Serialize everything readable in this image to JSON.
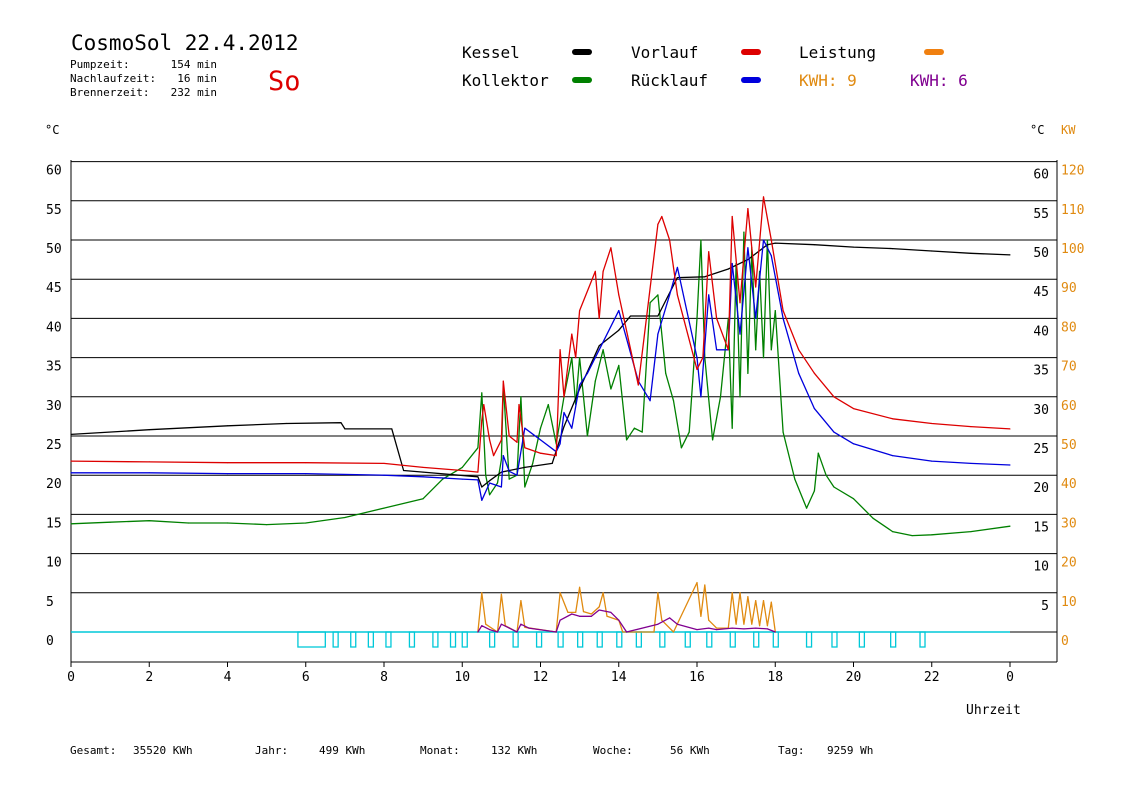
{
  "header": {
    "title": "CosmoSol 22.4.2012",
    "day": "So",
    "stats": [
      {
        "label": "Pumpzeit:",
        "value": "154 min"
      },
      {
        "label": "Nachlaufzeit:",
        "value": "16 min"
      },
      {
        "label": "Brennerzeit:",
        "value": "232 min"
      }
    ]
  },
  "colors": {
    "kessel": "#000000",
    "vorlauf": "#dd0000",
    "leistung": "#f08010",
    "kollektor": "#008000",
    "ruecklauf": "#0000dd",
    "kwh1": "#e08a10",
    "kwh2": "#800090",
    "pump": "#00c8d8",
    "grid": "#000000",
    "axis_right": "#e08a10"
  },
  "legend": [
    {
      "key": "kessel",
      "label": "Kessel"
    },
    {
      "key": "vorlauf",
      "label": "Vorlauf"
    },
    {
      "key": "leistung",
      "label": "Leistung"
    },
    {
      "key": "kollektor",
      "label": "Kollektor"
    },
    {
      "key": "ruecklauf",
      "label": "Rücklauf"
    },
    {
      "key": "kwh1",
      "label": "KWH: 9"
    },
    {
      "key": "kwh2",
      "label": "KWH: 6"
    }
  ],
  "footer": [
    {
      "label": "Gesamt:",
      "value": "35520 KWh"
    },
    {
      "label": "Jahr:",
      "value": "499 KWh"
    },
    {
      "label": "Monat:",
      "value": "132 KWh"
    },
    {
      "label": "Woche:",
      "value": "56 KWh"
    },
    {
      "label": "Tag:",
      "value": "9259 Wh"
    }
  ],
  "chart_data": {
    "type": "line",
    "xlabel": "Uhrzeit",
    "ylabel_left": "°C",
    "ylabel_right_temp": "°C",
    "ylabel_right_power": "KW",
    "xlim": [
      0,
      24
    ],
    "ylim": [
      0,
      60
    ],
    "x_ticks": [
      "0",
      "2",
      "4",
      "6",
      "8",
      "10",
      "12",
      "14",
      "16",
      "18",
      "20",
      "22",
      "0"
    ],
    "y_ticks_left": [
      0,
      5,
      10,
      15,
      20,
      25,
      30,
      35,
      40,
      45,
      50,
      55,
      60
    ],
    "y_ticks_right_temp": [
      5,
      10,
      15,
      20,
      25,
      30,
      35,
      40,
      45,
      50,
      55,
      60
    ],
    "y_ticks_right_power": [
      0,
      10,
      20,
      30,
      40,
      50,
      60,
      70,
      80,
      90,
      100,
      110,
      120
    ],
    "series": [
      {
        "name": "Kessel",
        "key": "kessel",
        "x": [
          0,
          2,
          4,
          5.5,
          6.9,
          7.0,
          8.2,
          8.5,
          9.0,
          10.4,
          10.5,
          10.7,
          11.0,
          11.6,
          12.3,
          12.6,
          13.0,
          13.5,
          14.0,
          14.3,
          15.0,
          15.5,
          16.2,
          16.8,
          17.3,
          17.8,
          18.0,
          19,
          20,
          21,
          22,
          23,
          24
        ],
        "y": [
          25.2,
          25.8,
          26.3,
          26.6,
          26.7,
          25.9,
          25.9,
          20.6,
          20.4,
          19.8,
          18.5,
          19.3,
          20.4,
          21.0,
          21.5,
          26.2,
          31.0,
          36.5,
          38.5,
          40.3,
          40.3,
          45.2,
          45.3,
          46.3,
          47.5,
          49.4,
          49.6,
          49.4,
          49.1,
          48.9,
          48.6,
          48.3,
          48.1
        ]
      },
      {
        "name": "Vorlauf",
        "key": "vorlauf",
        "x": [
          0,
          2,
          4,
          6,
          8,
          9,
          10,
          10.4,
          10.5,
          10.55,
          10.7,
          10.8,
          11.0,
          11.05,
          11.2,
          11.4,
          11.45,
          11.6,
          12.0,
          12.4,
          12.5,
          12.6,
          12.8,
          12.9,
          13.0,
          13.4,
          13.5,
          13.6,
          13.8,
          14.0,
          14.5,
          15.0,
          15.1,
          15.3,
          15.5,
          16.0,
          16.15,
          16.3,
          16.5,
          16.8,
          16.9,
          17.1,
          17.3,
          17.5,
          17.7,
          17.9,
          18.2,
          18.6,
          19.0,
          19.5,
          20,
          21,
          22,
          23,
          24
        ],
        "y": [
          21.8,
          21.7,
          21.6,
          21.6,
          21.5,
          21.0,
          20.6,
          20.4,
          27.0,
          29.0,
          24.5,
          22.5,
          24.5,
          32.0,
          25.0,
          24.2,
          29.0,
          23.5,
          22.8,
          22.5,
          36.0,
          30.0,
          38.0,
          35.0,
          41.0,
          46.0,
          40.0,
          46.0,
          49.0,
          43.0,
          31.5,
          52.0,
          53.0,
          50.0,
          43.0,
          33.5,
          35.0,
          48.5,
          40.0,
          36.0,
          53.0,
          42.0,
          54.0,
          44.0,
          55.5,
          50.0,
          41.0,
          36.0,
          33.0,
          30.0,
          28.5,
          27.2,
          26.6,
          26.2,
          25.9
        ]
      },
      {
        "name": "Rücklauf",
        "key": "ruecklauf",
        "x": [
          0,
          2,
          4,
          6,
          8,
          9,
          10,
          10.4,
          10.5,
          10.7,
          11.0,
          11.05,
          11.2,
          11.4,
          11.6,
          12.0,
          12.4,
          12.5,
          12.6,
          12.8,
          13.0,
          13.2,
          13.4,
          13.5,
          14.0,
          14.5,
          14.8,
          15.0,
          15.3,
          15.5,
          16.0,
          16.1,
          16.3,
          16.5,
          16.8,
          16.9,
          17.1,
          17.3,
          17.5,
          17.7,
          17.9,
          18.2,
          18.6,
          19.0,
          19.5,
          20,
          21,
          22,
          23,
          24
        ],
        "y": [
          20.3,
          20.3,
          20.2,
          20.2,
          20.0,
          19.8,
          19.5,
          19.4,
          16.8,
          19.0,
          18.5,
          22.5,
          20.5,
          20.0,
          26.0,
          24.5,
          23.0,
          24.0,
          28.0,
          26.0,
          31.5,
          33.0,
          35.0,
          36.0,
          41.0,
          32.0,
          29.5,
          38.0,
          43.0,
          46.5,
          35.0,
          30.0,
          43.0,
          36.0,
          36.0,
          47.0,
          38.0,
          49.0,
          40.0,
          50.0,
          48.0,
          40.0,
          33.0,
          28.5,
          25.5,
          24.0,
          22.5,
          21.8,
          21.5,
          21.3
        ]
      },
      {
        "name": "Kollektor",
        "key": "kollektor",
        "x": [
          0,
          1,
          2,
          3,
          4,
          5,
          6,
          7,
          8,
          9,
          9.5,
          10,
          10.4,
          10.5,
          10.6,
          10.7,
          10.9,
          11.0,
          11.05,
          11.2,
          11.4,
          11.5,
          11.6,
          11.8,
          12.0,
          12.2,
          12.4,
          12.6,
          12.8,
          12.9,
          13.0,
          13.2,
          13.4,
          13.6,
          13.8,
          14.0,
          14.2,
          14.4,
          14.6,
          14.8,
          15.0,
          15.2,
          15.4,
          15.6,
          15.8,
          16.0,
          16.1,
          16.2,
          16.4,
          16.6,
          16.8,
          16.9,
          17.0,
          17.1,
          17.2,
          17.3,
          17.4,
          17.5,
          17.6,
          17.7,
          17.8,
          17.9,
          18.0,
          18.2,
          18.5,
          18.8,
          19.0,
          19.1,
          19.3,
          19.5,
          20.0,
          20.5,
          21.0,
          21.5,
          22,
          23,
          24
        ],
        "y": [
          13.8,
          14.0,
          14.2,
          13.9,
          13.9,
          13.7,
          13.9,
          14.6,
          15.8,
          17.0,
          19.5,
          21.0,
          23.5,
          30.5,
          20.0,
          17.5,
          19.0,
          22.0,
          31.5,
          19.5,
          20.0,
          30.0,
          18.5,
          21.5,
          26.0,
          29.0,
          24.0,
          30.0,
          35.0,
          29.0,
          35.0,
          25.0,
          32.0,
          36.0,
          31.0,
          34.0,
          24.5,
          26.0,
          25.5,
          42.0,
          43.0,
          33.0,
          29.5,
          23.5,
          25.5,
          40.0,
          50.0,
          35.0,
          24.5,
          30.0,
          40.0,
          26.0,
          47.0,
          30.0,
          51.0,
          33.0,
          49.0,
          36.0,
          46.0,
          35.0,
          50.0,
          36.0,
          41.0,
          25.5,
          19.5,
          15.8,
          18.0,
          22.8,
          20.0,
          18.5,
          17.0,
          14.5,
          12.8,
          12.3,
          12.4,
          12.8,
          13.5
        ]
      },
      {
        "name": "KWH: 9",
        "key": "kwh1",
        "x": [
          10.4,
          10.5,
          10.6,
          10.9,
          11.0,
          11.1,
          11.4,
          11.5,
          11.6,
          12.4,
          12.5,
          12.7,
          12.9,
          13.0,
          13.1,
          13.3,
          13.5,
          13.6,
          13.7,
          14.0,
          14.1,
          14.9,
          15.0,
          15.1,
          15.4,
          16.0,
          16.1,
          16.2,
          16.3,
          16.5,
          16.8,
          16.9,
          17.0,
          17.1,
          17.2,
          17.3,
          17.4,
          17.5,
          17.6,
          17.7,
          17.8,
          17.9,
          18.0
        ],
        "y": [
          0,
          5.0,
          1.0,
          0,
          4.8,
          0.8,
          0,
          4.0,
          0.6,
          0,
          5.0,
          2.5,
          2.5,
          5.7,
          2.6,
          2.3,
          3.2,
          5.0,
          2.0,
          1.5,
          0,
          0,
          5.0,
          1.5,
          0,
          6.3,
          2.0,
          6.0,
          1.5,
          0.5,
          0.5,
          5.0,
          1.0,
          5.0,
          1.0,
          4.5,
          1.0,
          4.0,
          0.8,
          4.0,
          0.8,
          3.8,
          0
        ]
      },
      {
        "name": "KWH: 6",
        "key": "kwh2",
        "x": [
          10.4,
          10.5,
          10.7,
          10.9,
          11.0,
          11.2,
          11.4,
          11.5,
          11.7,
          12.4,
          12.5,
          12.8,
          13.0,
          13.3,
          13.5,
          13.8,
          14.0,
          14.2,
          15.0,
          15.3,
          15.5,
          16.0,
          16.3,
          16.5,
          16.9,
          17.2,
          17.5,
          17.8,
          18.0
        ],
        "y": [
          0,
          0.8,
          0.3,
          0,
          1.0,
          0.5,
          0,
          1.0,
          0.5,
          0,
          1.5,
          2.3,
          2.0,
          2.0,
          2.8,
          2.5,
          1.5,
          0,
          1.0,
          1.8,
          1.0,
          0.3,
          0.5,
          0.3,
          0.5,
          0.4,
          0.5,
          0.4,
          0
        ]
      },
      {
        "name": "Leistung",
        "key": "leistung",
        "x": [],
        "y": []
      }
    ],
    "pump_intervals": [
      [
        5.8,
        6.5
      ],
      [
        6.7,
        6.8
      ],
      [
        7.15,
        7.25
      ],
      [
        7.6,
        7.7
      ],
      [
        8.05,
        8.15
      ],
      [
        8.65,
        8.75
      ],
      [
        9.25,
        9.35
      ],
      [
        9.7,
        9.8
      ],
      [
        10.0,
        10.1
      ],
      [
        10.7,
        10.8
      ],
      [
        11.3,
        11.4
      ],
      [
        11.9,
        12.0
      ],
      [
        12.45,
        12.55
      ],
      [
        12.95,
        13.05
      ],
      [
        13.45,
        13.55
      ],
      [
        13.95,
        14.05
      ],
      [
        14.45,
        14.55
      ],
      [
        15.05,
        15.15
      ],
      [
        15.7,
        15.8
      ],
      [
        16.25,
        16.35
      ],
      [
        16.85,
        16.95
      ],
      [
        17.45,
        17.55
      ],
      [
        17.95,
        18.05
      ],
      [
        18.8,
        18.9
      ],
      [
        19.45,
        19.55
      ],
      [
        20.15,
        20.25
      ],
      [
        20.95,
        21.05
      ],
      [
        21.7,
        21.8
      ]
    ],
    "grid": true
  }
}
